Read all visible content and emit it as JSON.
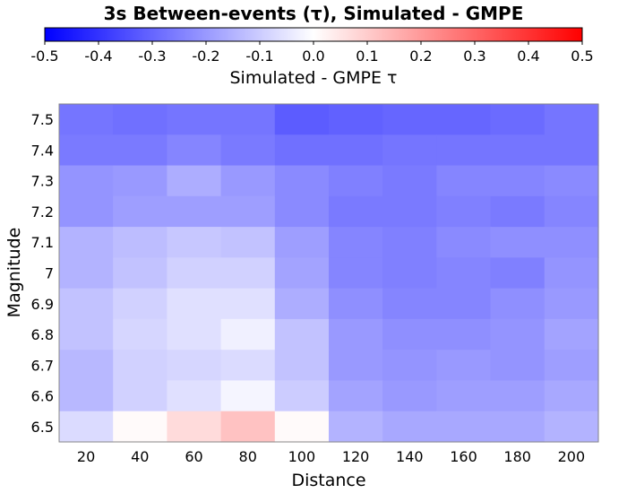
{
  "chart_data": {
    "type": "heatmap",
    "title": "3s Between-events (τ), Simulated - GMPE",
    "xlabel": "Distance",
    "ylabel": "Magnitude",
    "x_categories": [
      "20",
      "40",
      "60",
      "80",
      "100",
      "120",
      "140",
      "160",
      "180",
      "200"
    ],
    "y_categories": [
      "6.5",
      "6.6",
      "6.7",
      "6.8",
      "6.9",
      "7",
      "7.1",
      "7.2",
      "7.3",
      "7.4",
      "7.5"
    ],
    "colorbar": {
      "label": "Simulated - GMPE τ",
      "range": [
        -0.5,
        0.5
      ],
      "ticks": [
        "-0.5",
        "-0.4",
        "-0.3",
        "-0.2",
        "-0.1",
        "0.0",
        "0.1",
        "0.2",
        "0.3",
        "0.4",
        "0.5"
      ],
      "colors": {
        "min": "#0000ff",
        "mid": "#ffffff",
        "max": "#ff0000"
      }
    },
    "rows": [
      {
        "magnitude": "7.5",
        "values": [
          -0.27,
          -0.28,
          -0.27,
          -0.27,
          -0.32,
          -0.31,
          -0.3,
          -0.3,
          -0.29,
          -0.27
        ]
      },
      {
        "magnitude": "7.4",
        "values": [
          -0.26,
          -0.26,
          -0.24,
          -0.26,
          -0.28,
          -0.28,
          -0.27,
          -0.27,
          -0.27,
          -0.27
        ]
      },
      {
        "magnitude": "7.3",
        "values": [
          -0.21,
          -0.2,
          -0.16,
          -0.2,
          -0.23,
          -0.25,
          -0.26,
          -0.24,
          -0.24,
          -0.23
        ]
      },
      {
        "magnitude": "7.2",
        "values": [
          -0.21,
          -0.19,
          -0.19,
          -0.19,
          -0.23,
          -0.26,
          -0.26,
          -0.25,
          -0.26,
          -0.24
        ]
      },
      {
        "magnitude": "7.1",
        "values": [
          -0.15,
          -0.13,
          -0.11,
          -0.12,
          -0.19,
          -0.24,
          -0.25,
          -0.23,
          -0.22,
          -0.22
        ]
      },
      {
        "magnitude": "7",
        "values": [
          -0.15,
          -0.12,
          -0.09,
          -0.09,
          -0.18,
          -0.24,
          -0.25,
          -0.24,
          -0.25,
          -0.21
        ]
      },
      {
        "magnitude": "6.9",
        "values": [
          -0.12,
          -0.09,
          -0.06,
          -0.06,
          -0.16,
          -0.22,
          -0.24,
          -0.24,
          -0.22,
          -0.2
        ]
      },
      {
        "magnitude": "6.8",
        "values": [
          -0.12,
          -0.08,
          -0.06,
          -0.03,
          -0.12,
          -0.2,
          -0.22,
          -0.22,
          -0.21,
          -0.18
        ]
      },
      {
        "magnitude": "6.7",
        "values": [
          -0.14,
          -0.09,
          -0.08,
          -0.07,
          -0.12,
          -0.2,
          -0.21,
          -0.2,
          -0.21,
          -0.19
        ]
      },
      {
        "magnitude": "6.6",
        "values": [
          -0.14,
          -0.09,
          -0.06,
          -0.02,
          -0.1,
          -0.18,
          -0.2,
          -0.19,
          -0.19,
          -0.17
        ]
      },
      {
        "magnitude": "6.5",
        "values": [
          -0.07,
          0.01,
          0.07,
          0.12,
          0.01,
          -0.15,
          -0.17,
          -0.17,
          -0.17,
          -0.15
        ]
      }
    ]
  }
}
